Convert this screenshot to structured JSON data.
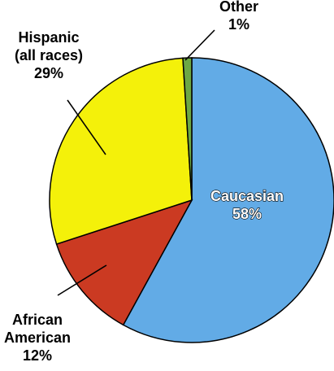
{
  "chart_data": {
    "type": "pie",
    "slices": [
      {
        "label": "Caucasian",
        "value_label": "58%",
        "value": 58,
        "color": "#62ABE6"
      },
      {
        "label": "African\nAmerican",
        "value_label": "12%",
        "value": 12,
        "color": "#CB3A22"
      },
      {
        "label": "Hispanic\n(all races)",
        "value_label": "29%",
        "value": 29,
        "color": "#F4F10A"
      },
      {
        "label": "Other",
        "value_label": "1%",
        "value": 1,
        "color": "#6DA844"
      }
    ]
  }
}
